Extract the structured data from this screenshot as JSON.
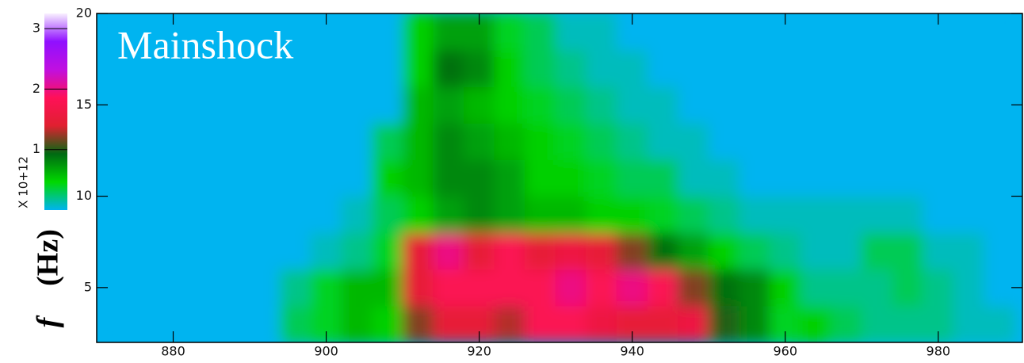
{
  "chart_data": {
    "type": "heatmap",
    "title": "Mainshock",
    "ylabel": {
      "symbol": "f",
      "unit": "(Hz)"
    },
    "x": [
      872,
      876,
      880,
      884,
      888,
      892,
      896,
      900,
      904,
      908,
      912,
      916,
      920,
      924,
      928,
      932,
      936,
      940,
      944,
      948,
      952,
      956,
      960,
      964,
      968,
      972,
      976,
      980,
      984,
      988
    ],
    "y": [
      3,
      5,
      7,
      9,
      11,
      13,
      15,
      17,
      19
    ],
    "z": [
      [
        0,
        0,
        0,
        0,
        0,
        0,
        0.3,
        0.4,
        0.6,
        0.5,
        1.2,
        1.5,
        1.5,
        1.3,
        1.8,
        1.8,
        1.6,
        1.5,
        1.5,
        1.6,
        1.0,
        0.8,
        0.4,
        0.5,
        0.3,
        0.2,
        0.2,
        0.2,
        0.1,
        0.1
      ],
      [
        0,
        0,
        0,
        0,
        0,
        0,
        0.2,
        0.4,
        0.6,
        0.6,
        1.5,
        1.8,
        1.8,
        1.8,
        1.8,
        2.0,
        1.8,
        2.0,
        1.8,
        1.2,
        0.9,
        0.8,
        0.5,
        0.2,
        0.2,
        0.2,
        0.3,
        0.2,
        0.1,
        0
      ],
      [
        0,
        0,
        0,
        0,
        0,
        0,
        0,
        0.1,
        0.2,
        0.4,
        1.5,
        2.0,
        1.5,
        1.8,
        1.5,
        1.6,
        1.5,
        1.2,
        0.9,
        0.7,
        0.5,
        0.3,
        0.2,
        0.1,
        0.1,
        0.3,
        0.3,
        0.1,
        0.1,
        0
      ],
      [
        0,
        0,
        0,
        0,
        0,
        0,
        0,
        0,
        0.1,
        0.3,
        0.5,
        0.7,
        0.8,
        0.7,
        0.6,
        0.6,
        0.5,
        0.5,
        0.4,
        0.3,
        0.2,
        0.1,
        0.1,
        0.1,
        0.1,
        0.1,
        0.1,
        0,
        0,
        0
      ],
      [
        0,
        0,
        0,
        0,
        0,
        0,
        0,
        0,
        0,
        0.5,
        0.6,
        0.8,
        0.8,
        0.7,
        0.5,
        0.5,
        0.4,
        0.3,
        0.3,
        0.1,
        0.1,
        0,
        0,
        0,
        0,
        0,
        0,
        0,
        0,
        0
      ],
      [
        0,
        0,
        0,
        0,
        0,
        0,
        0,
        0,
        0,
        0.3,
        0.6,
        0.8,
        0.7,
        0.6,
        0.5,
        0.4,
        0.3,
        0.2,
        0.1,
        0.1,
        0,
        0,
        0,
        0,
        0,
        0,
        0,
        0,
        0,
        0
      ],
      [
        0,
        0,
        0,
        0,
        0,
        0,
        0,
        0,
        0,
        0,
        0.6,
        0.7,
        0.6,
        0.5,
        0.4,
        0.3,
        0.2,
        0.1,
        0.1,
        0,
        0,
        0,
        0,
        0,
        0,
        0,
        0,
        0,
        0,
        0
      ],
      [
        0,
        0,
        0,
        0,
        0,
        0,
        0,
        0,
        0,
        0,
        0.5,
        0.9,
        0.8,
        0.5,
        0.3,
        0.2,
        0.1,
        0.1,
        0,
        0,
        0,
        0,
        0,
        0,
        0,
        0,
        0,
        0,
        0,
        0
      ],
      [
        0,
        0,
        0,
        0,
        0,
        0,
        0,
        0,
        0,
        0,
        0.5,
        0.7,
        0.7,
        0.4,
        0.3,
        0.1,
        0.1,
        0,
        0,
        0,
        0,
        0,
        0,
        0,
        0,
        0,
        0,
        0,
        0,
        0
      ]
    ],
    "xlim": [
      870,
      991
    ],
    "xticks": [
      880,
      900,
      920,
      940,
      960,
      980
    ],
    "ylim": [
      2,
      20
    ],
    "yticks": [
      5,
      10,
      15,
      20
    ],
    "clim": [
      0,
      3.25
    ],
    "cticks": [
      1,
      2,
      3
    ],
    "clabel": "X 10+12",
    "colormap": [
      "#00b4f0",
      "#00d800",
      "#006a12",
      "#e02030",
      "#ff1058",
      "#c010e0",
      "#9010ff",
      "#f8f0ff"
    ]
  }
}
